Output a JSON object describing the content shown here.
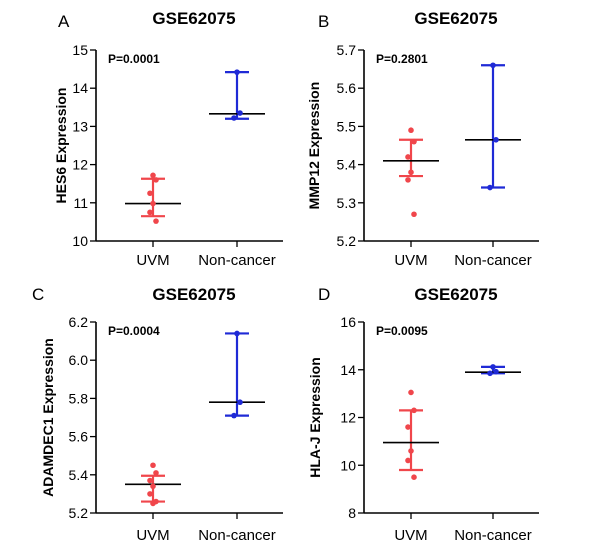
{
  "chart_data": [
    {
      "type": "scatter",
      "letter": "A",
      "title": "GSE62075",
      "ylabel": "HES6 Expression",
      "ylim": [
        10,
        15
      ],
      "yticks": [
        "10",
        "11",
        "12",
        "13",
        "14",
        "15"
      ],
      "pvalue": "P=0.0001",
      "categories": [
        "UVM",
        "Non-cancer"
      ],
      "groups": [
        {
          "name": "UVM",
          "color": "#f0464b",
          "points": [
            11.72,
            11.6,
            11.25,
            10.98,
            10.75,
            10.52
          ],
          "median": 10.98,
          "lower": 10.65,
          "upper": 11.63
        },
        {
          "name": "Non-cancer",
          "color": "#1f2ad6",
          "points": [
            14.42,
            13.35,
            13.22
          ],
          "median": 13.33,
          "lower": 13.2,
          "upper": 14.42
        }
      ]
    },
    {
      "type": "scatter",
      "letter": "B",
      "title": "GSE62075",
      "ylabel": "MMP12 Expression",
      "ylim": [
        5.2,
        5.7
      ],
      "yticks": [
        "5.2",
        "5.3",
        "5.4",
        "5.5",
        "5.6",
        "5.7"
      ],
      "pvalue": "P=0.2801",
      "categories": [
        "UVM",
        "Non-cancer"
      ],
      "groups": [
        {
          "name": "UVM",
          "color": "#f0464b",
          "points": [
            5.49,
            5.46,
            5.42,
            5.38,
            5.36,
            5.27
          ],
          "median": 5.41,
          "lower": 5.37,
          "upper": 5.465
        },
        {
          "name": "Non-cancer",
          "color": "#1f2ad6",
          "points": [
            5.66,
            5.465,
            5.34
          ],
          "median": 5.465,
          "lower": 5.34,
          "upper": 5.66
        }
      ]
    },
    {
      "type": "scatter",
      "letter": "C",
      "title": "GSE62075",
      "ylabel": "ADAMDEC1 Expression",
      "ylim": [
        5.2,
        6.2
      ],
      "yticks": [
        "5.2",
        "5.4",
        "5.6",
        "5.8",
        "6.0",
        "6.2"
      ],
      "pvalue": "P=0.0004",
      "categories": [
        "UVM",
        "Non-cancer"
      ],
      "groups": [
        {
          "name": "UVM",
          "color": "#f0464b",
          "points": [
            5.45,
            5.41,
            5.37,
            5.34,
            5.3,
            5.26,
            5.25
          ],
          "median": 5.35,
          "lower": 5.26,
          "upper": 5.395
        },
        {
          "name": "Non-cancer",
          "color": "#1f2ad6",
          "points": [
            6.14,
            5.78,
            5.71
          ],
          "median": 5.78,
          "lower": 5.71,
          "upper": 6.14
        }
      ]
    },
    {
      "type": "scatter",
      "letter": "D",
      "title": "GSE62075",
      "ylabel": "HLA-J Expression",
      "ylim": [
        8,
        16
      ],
      "yticks": [
        "8",
        "10",
        "12",
        "14",
        "16"
      ],
      "pvalue": "P=0.0095",
      "categories": [
        "UVM",
        "Non-cancer"
      ],
      "groups": [
        {
          "name": "UVM",
          "color": "#f0464b",
          "points": [
            13.05,
            12.3,
            11.6,
            10.6,
            10.2,
            9.5
          ],
          "median": 10.95,
          "lower": 9.8,
          "upper": 12.3
        },
        {
          "name": "Non-cancer",
          "color": "#1f2ad6",
          "points": [
            14.12,
            13.92,
            13.85
          ],
          "median": 13.9,
          "lower": 13.85,
          "upper": 14.12
        }
      ]
    }
  ]
}
